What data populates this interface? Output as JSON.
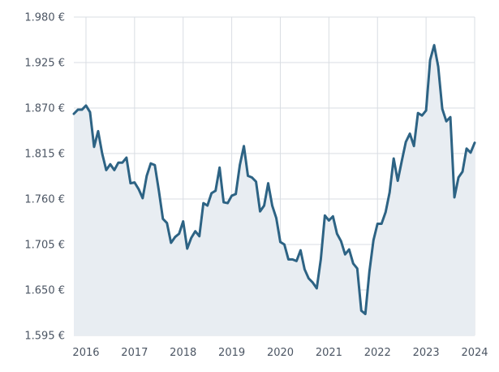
{
  "chart_data": {
    "type": "area",
    "title": "",
    "xlabel": "",
    "ylabel": "",
    "ylim": [
      1595,
      1980
    ],
    "xlim": [
      "2015-10",
      "2024-01"
    ],
    "grid": true,
    "legend": "none",
    "colors": {
      "line": "#2d6384",
      "fill": "#e8edf2",
      "grid": "#d9dde3",
      "tick_text": "#4b5563"
    },
    "y_ticks": [
      {
        "value": 1595,
        "label": "1.595 €"
      },
      {
        "value": 1650,
        "label": "1.650 €"
      },
      {
        "value": 1705,
        "label": "1.705 €"
      },
      {
        "value": 1760,
        "label": "1.760 €"
      },
      {
        "value": 1815,
        "label": "1.815 €"
      },
      {
        "value": 1870,
        "label": "1.870 €"
      },
      {
        "value": 1925,
        "label": "1.925 €"
      },
      {
        "value": 1980,
        "label": "1.980 €"
      }
    ],
    "x_ticks": [
      {
        "value": "2016-01",
        "label": "2016"
      },
      {
        "value": "2017-01",
        "label": "2017"
      },
      {
        "value": "2018-01",
        "label": "2018"
      },
      {
        "value": "2019-01",
        "label": "2019"
      },
      {
        "value": "2020-01",
        "label": "2020"
      },
      {
        "value": "2021-01",
        "label": "2021"
      },
      {
        "value": "2022-01",
        "label": "2022"
      },
      {
        "value": "2023-01",
        "label": "2023"
      },
      {
        "value": "2024-01",
        "label": "2024"
      }
    ],
    "series": [
      {
        "points": [
          [
            "2015-10",
            1863
          ],
          [
            "2015-11",
            1868
          ],
          [
            "2015-12",
            1868
          ],
          [
            "2016-01",
            1873
          ],
          [
            "2016-02",
            1865
          ],
          [
            "2016-03",
            1823
          ],
          [
            "2016-04",
            1842
          ],
          [
            "2016-05",
            1815
          ],
          [
            "2016-06",
            1795
          ],
          [
            "2016-07",
            1802
          ],
          [
            "2016-08",
            1795
          ],
          [
            "2016-09",
            1804
          ],
          [
            "2016-10",
            1804
          ],
          [
            "2016-11",
            1810
          ],
          [
            "2016-12",
            1779
          ],
          [
            "2017-01",
            1780
          ],
          [
            "2017-02",
            1772
          ],
          [
            "2017-03",
            1761
          ],
          [
            "2017-04",
            1788
          ],
          [
            "2017-05",
            1803
          ],
          [
            "2017-06",
            1801
          ],
          [
            "2017-07",
            1770
          ],
          [
            "2017-08",
            1736
          ],
          [
            "2017-09",
            1731
          ],
          [
            "2017-10",
            1707
          ],
          [
            "2017-11",
            1714
          ],
          [
            "2017-12",
            1718
          ],
          [
            "2018-01",
            1733
          ],
          [
            "2018-02",
            1700
          ],
          [
            "2018-03",
            1713
          ],
          [
            "2018-04",
            1721
          ],
          [
            "2018-05",
            1715
          ],
          [
            "2018-06",
            1755
          ],
          [
            "2018-07",
            1752
          ],
          [
            "2018-08",
            1767
          ],
          [
            "2018-09",
            1770
          ],
          [
            "2018-10",
            1798
          ],
          [
            "2018-11",
            1756
          ],
          [
            "2018-12",
            1755
          ],
          [
            "2019-01",
            1764
          ],
          [
            "2019-02",
            1766
          ],
          [
            "2019-03",
            1801
          ],
          [
            "2019-04",
            1824
          ],
          [
            "2019-05",
            1788
          ],
          [
            "2019-06",
            1786
          ],
          [
            "2019-07",
            1781
          ],
          [
            "2019-08",
            1745
          ],
          [
            "2019-09",
            1752
          ],
          [
            "2019-10",
            1779
          ],
          [
            "2019-11",
            1752
          ],
          [
            "2019-12",
            1737
          ],
          [
            "2020-01",
            1708
          ],
          [
            "2020-02",
            1705
          ],
          [
            "2020-03",
            1687
          ],
          [
            "2020-04",
            1687
          ],
          [
            "2020-05",
            1685
          ],
          [
            "2020-06",
            1698
          ],
          [
            "2020-07",
            1675
          ],
          [
            "2020-08",
            1664
          ],
          [
            "2020-09",
            1659
          ],
          [
            "2020-10",
            1652
          ],
          [
            "2020-11",
            1687
          ],
          [
            "2020-12",
            1740
          ],
          [
            "2021-01",
            1734
          ],
          [
            "2021-02",
            1739
          ],
          [
            "2021-03",
            1718
          ],
          [
            "2021-04",
            1709
          ],
          [
            "2021-05",
            1693
          ],
          [
            "2021-06",
            1699
          ],
          [
            "2021-07",
            1682
          ],
          [
            "2021-08",
            1676
          ],
          [
            "2021-09",
            1625
          ],
          [
            "2021-10",
            1621
          ],
          [
            "2021-11",
            1672
          ],
          [
            "2021-12",
            1710
          ],
          [
            "2022-01",
            1730
          ],
          [
            "2022-02",
            1730
          ],
          [
            "2022-03",
            1744
          ],
          [
            "2022-04",
            1768
          ],
          [
            "2022-05",
            1809
          ],
          [
            "2022-06",
            1782
          ],
          [
            "2022-07",
            1806
          ],
          [
            "2022-08",
            1829
          ],
          [
            "2022-09",
            1839
          ],
          [
            "2022-10",
            1824
          ],
          [
            "2022-11",
            1864
          ],
          [
            "2022-12",
            1861
          ],
          [
            "2023-01",
            1867
          ],
          [
            "2023-02",
            1928
          ],
          [
            "2023-03",
            1946
          ],
          [
            "2023-04",
            1920
          ],
          [
            "2023-05",
            1869
          ],
          [
            "2023-06",
            1854
          ],
          [
            "2023-07",
            1859
          ],
          [
            "2023-08",
            1762
          ],
          [
            "2023-09",
            1786
          ],
          [
            "2023-10",
            1793
          ],
          [
            "2023-11",
            1821
          ],
          [
            "2023-12",
            1816
          ],
          [
            "2024-01",
            1828
          ]
        ]
      }
    ]
  }
}
